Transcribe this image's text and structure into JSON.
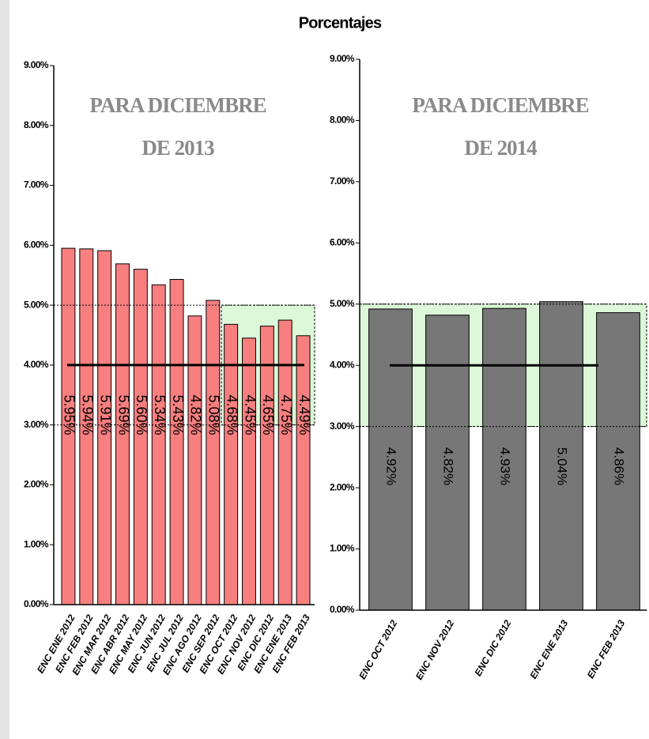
{
  "title": "Porcentajes",
  "chart_data": [
    {
      "type": "bar",
      "annotation": [
        "PARA DICIEMBRE",
        "DE 2013"
      ],
      "categories": [
        "ENC ENE 2012",
        "ENC FEB 2012",
        "ENC MAR 2012",
        "ENC ABR 2012",
        "ENC MAY 2012",
        "ENC JUN 2012",
        "ENC JUL 2012",
        "ENC AGO 2012",
        "ENC SEP 2012",
        "ENC OCT 2012",
        "ENC NOV 2012",
        "ENC DIC 2012",
        "ENC ENE 2013",
        "ENC FEB 2013"
      ],
      "values": [
        5.95,
        5.94,
        5.91,
        5.69,
        5.6,
        5.34,
        5.43,
        4.82,
        5.08,
        4.68,
        4.45,
        4.65,
        4.75,
        4.49
      ],
      "value_labels": [
        "5.95%",
        "5.94%",
        "5.91%",
        "5.69%",
        "5.60%",
        "5.34%",
        "5.43%",
        "4.82%",
        "5.08%",
        "4.68%",
        "4.45%",
        "4.65%",
        "4.75%",
        "4.49%"
      ],
      "color": "#f77f7f",
      "ylim": [
        0,
        9
      ],
      "yticks": [
        {
          "value": 0,
          "label": "0.00%"
        },
        {
          "value": 1,
          "label": "1.00%"
        },
        {
          "value": 2,
          "label": "2.00%"
        },
        {
          "value": 3,
          "label": "3.00%"
        },
        {
          "value": 4,
          "label": "4.00%"
        },
        {
          "value": 5,
          "label": "5.00%"
        },
        {
          "value": 6,
          "label": "6.00%"
        },
        {
          "value": 7,
          "label": "7.00%"
        },
        {
          "value": 8,
          "label": "8.00%"
        },
        {
          "value": 9,
          "label": "9.00%"
        }
      ],
      "reference_line": 4,
      "band": [
        3,
        5
      ],
      "band_color": "#dcf8d8"
    },
    {
      "type": "bar",
      "annotation": [
        "PARA DICIEMBRE",
        "DE 2014"
      ],
      "categories": [
        "ENC OCT 2012",
        "ENC NOV 2012",
        "ENC DIC 2012",
        "ENC ENE 2013",
        "ENC FEB 2013"
      ],
      "values": [
        4.92,
        4.82,
        4.93,
        5.04,
        4.86
      ],
      "value_labels": [
        "4.92%",
        "4.82%",
        "4.93%",
        "5.04%",
        "4.86%"
      ],
      "color": "#777777",
      "ylim": [
        0,
        9
      ],
      "yticks": [
        {
          "value": 0,
          "label": "0.00%"
        },
        {
          "value": 1,
          "label": "1.00%"
        },
        {
          "value": 2,
          "label": "2.00%"
        },
        {
          "value": 3,
          "label": "3.00%"
        },
        {
          "value": 4,
          "label": "4.00%"
        },
        {
          "value": 5,
          "label": "5.00%"
        },
        {
          "value": 6,
          "label": "6.00%"
        },
        {
          "value": 7,
          "label": "7.00%"
        },
        {
          "value": 8,
          "label": "8.00%"
        },
        {
          "value": 9,
          "label": "9.00%"
        }
      ],
      "reference_line": 4,
      "band": [
        3,
        5
      ],
      "band_color": "#dcf8d8"
    }
  ]
}
